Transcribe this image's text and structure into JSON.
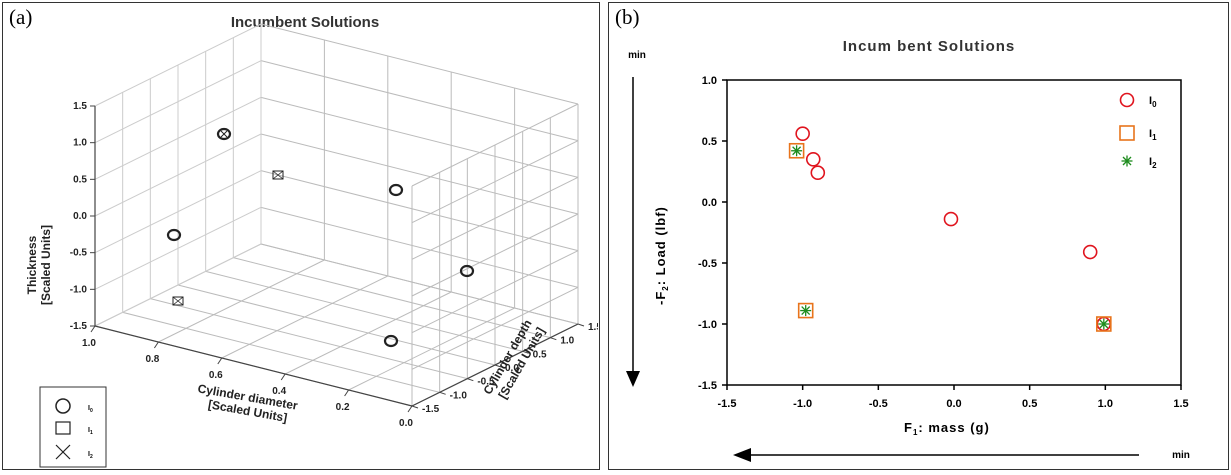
{
  "chart_data": [
    {
      "panel_label": "(a)",
      "type": "scatter",
      "title": "Incumbent Solutions",
      "xlabel": "Cylinder diameter",
      "xlabel_sub": "[Scaled Units]",
      "ylabel": "Cylinder depth",
      "ylabel_sub": "[Scaled Units]",
      "zlabel": "Thickness",
      "zlabel_sub": "[Scaled Units]",
      "xlim": [
        0,
        1
      ],
      "ylim": [
        -1.5,
        1.5
      ],
      "zlim": [
        -1.5,
        1.5
      ],
      "x_ticks": [
        "1.0",
        "0.8",
        "0.6",
        "0.4",
        "0.2",
        "0.0"
      ],
      "y_ticks": [
        "-1.5",
        "-1.0",
        "-0.5",
        "0.0",
        "0.5",
        "1.0",
        "1.5"
      ],
      "z_ticks": [
        "1.5",
        "1.0",
        "0.5",
        "0.0",
        "-0.5",
        "-1.0",
        "-1.5"
      ],
      "legend": [
        {
          "name": "I",
          "sub": "0",
          "marker": "circle"
        },
        {
          "name": "I",
          "sub": "1",
          "marker": "square"
        },
        {
          "name": "I",
          "sub": "2",
          "marker": "x"
        }
      ],
      "points": [
        {
          "series": "I0",
          "x": 0.75,
          "y": 0.0,
          "z": 1.45
        },
        {
          "series": "I0",
          "x": 0.75,
          "y": -1.25,
          "z": 0.4
        },
        {
          "series": "I0",
          "x": 0.05,
          "y": 1.2,
          "z": 0.45
        },
        {
          "series": "I0",
          "x": 0.1,
          "y": 1.2,
          "z": -0.9
        },
        {
          "series": "I0",
          "x": 0.3,
          "y": -0.6,
          "z": -0.95
        },
        {
          "series": "I0",
          "x": 0.75,
          "y": 0.0,
          "z": 1.45,
          "overlap": "I2"
        },
        {
          "series": "I1",
          "x": 0.6,
          "y": 1.0,
          "z": 1.0
        },
        {
          "series": "I1",
          "x": 0.9,
          "y": -1.2,
          "z": -0.6
        }
      ]
    },
    {
      "panel_label": "(b)",
      "type": "scatter",
      "title": "Incum bent Solutions",
      "xlabel": "F",
      "xlabel_sub": "1",
      "xlabel_rest": ": mass (g)",
      "ylabel": "-F",
      "ylabel_sub": "2",
      "ylabel_rest": ": Load (lbf)",
      "xlim": [
        -1.5,
        1.5
      ],
      "ylim": [
        -1.5,
        1.0
      ],
      "x_ticks": [
        "-1.5",
        "-1.0",
        "-0.5",
        "0.0",
        "0.5",
        "1.0",
        "1.5"
      ],
      "y_ticks": [
        "1.0",
        "0.5",
        "0.0",
        "-0.5",
        "-1.0",
        "-1.5"
      ],
      "min_top": "min",
      "min_bottom": "min",
      "series": [
        {
          "name": "I",
          "sub": "0",
          "marker": "circle",
          "color": "#e0141e",
          "points": [
            [
              -1.0,
              0.56
            ],
            [
              -0.93,
              0.35
            ],
            [
              -0.9,
              0.24
            ],
            [
              -0.02,
              -0.14
            ],
            [
              0.9,
              -0.41
            ],
            [
              0.99,
              -1.0
            ]
          ]
        },
        {
          "name": "I",
          "sub": "1",
          "marker": "square",
          "color": "#e8741c",
          "points": [
            [
              -1.04,
              0.42
            ],
            [
              -0.98,
              -0.89
            ],
            [
              0.99,
              -1.0
            ]
          ]
        },
        {
          "name": "I",
          "sub": "2",
          "marker": "star",
          "color": "#1e8c1e",
          "points": [
            [
              -1.04,
              0.42
            ],
            [
              -0.98,
              -0.89
            ],
            [
              0.99,
              -1.0
            ]
          ]
        }
      ]
    }
  ]
}
